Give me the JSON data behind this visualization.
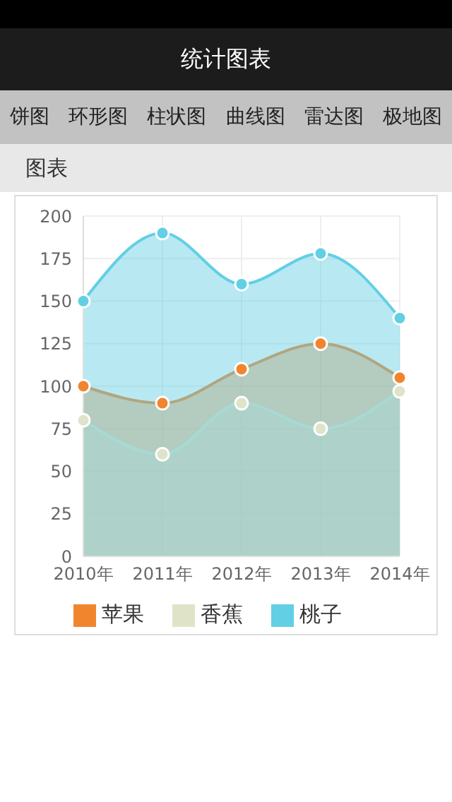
{
  "chart_data": {
    "type": "area",
    "title": "统计图表",
    "subtitle": "图表",
    "annotations": [
      "饼图",
      "环形图",
      "柱状图",
      "曲线图",
      "雷达图",
      "极地图"
    ],
    "categories": [
      "2010年",
      "2011年",
      "2012年",
      "2013年",
      "2014年"
    ],
    "series": [
      {
        "name": "苹果",
        "color": "#f0852e",
        "values": [
          100,
          90,
          110,
          125,
          105
        ]
      },
      {
        "name": "香蕉",
        "color": "#dfe4c9",
        "values": [
          80,
          60,
          90,
          75,
          97
        ]
      },
      {
        "name": "桃子",
        "color": "#62cfe4",
        "values": [
          150,
          190,
          160,
          178,
          140
        ]
      }
    ],
    "ylim": [
      0,
      200
    ],
    "yticks": [
      0,
      25,
      50,
      75,
      100,
      125,
      150,
      175,
      200
    ],
    "grid": true,
    "legend": "bottom",
    "marker": "circle",
    "line_style": "solid"
  }
}
